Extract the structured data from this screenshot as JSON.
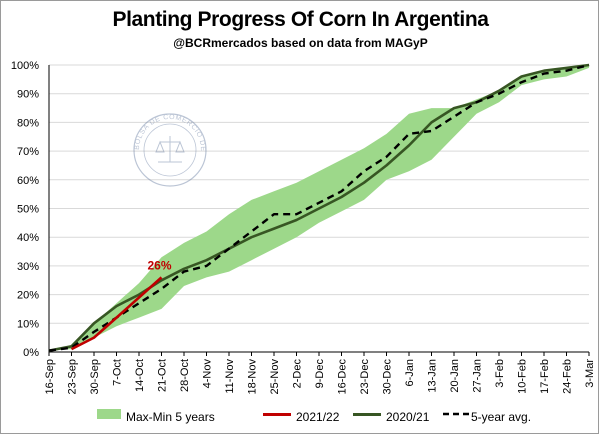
{
  "chart_data": {
    "type": "line",
    "title": "Planting Progress Of Corn In Argentina",
    "subtitle": "@BCRmercados based on data from MAGyP",
    "x": [
      "16-Sep",
      "23-Sep",
      "30-Sep",
      "7-Oct",
      "14-Oct",
      "21-Oct",
      "28-Oct",
      "4-Nov",
      "11-Nov",
      "18-Nov",
      "25-Nov",
      "2-Dec",
      "9-Dec",
      "16-Dec",
      "23-Dec",
      "30-Dec",
      "6-Jan",
      "13-Jan",
      "20-Jan",
      "27-Jan",
      "3-Feb",
      "10-Feb",
      "17-Feb",
      "24-Feb",
      "3-Mar"
    ],
    "y_ticks": [
      "0%",
      "10%",
      "20%",
      "30%",
      "40%",
      "50%",
      "60%",
      "70%",
      "80%",
      "90%",
      "100%"
    ],
    "ylim": [
      0,
      100
    ],
    "grid": "horizontal",
    "legend_position": "bottom",
    "colors": {
      "band": "#9dd88a",
      "current": "#c00000",
      "prev": "#375623",
      "avg": "#000000"
    },
    "series": [
      {
        "name": "Max-Min 5 years",
        "kind": "band",
        "max": [
          0.5,
          2,
          10,
          17,
          24,
          33,
          38,
          42,
          48,
          53,
          56,
          59,
          63,
          67,
          71,
          76,
          83,
          85,
          85,
          88,
          91,
          96,
          98,
          99,
          100
        ],
        "min": [
          0.5,
          1,
          5,
          9,
          12,
          15,
          23,
          26,
          28,
          32,
          36,
          40,
          45,
          49,
          53,
          60,
          63,
          67,
          75,
          83,
          87,
          93,
          95,
          96,
          99
        ]
      },
      {
        "name": "2021/22",
        "kind": "line",
        "values": [
          null,
          1,
          5,
          12,
          19,
          26,
          null,
          null,
          null,
          null,
          null,
          null,
          null,
          null,
          null,
          null,
          null,
          null,
          null,
          null,
          null,
          null,
          null,
          null,
          null
        ]
      },
      {
        "name": "2020/21",
        "kind": "line",
        "values": [
          0.5,
          2,
          10,
          16,
          20,
          25,
          29,
          32,
          36,
          40,
          43,
          46,
          50,
          54,
          59,
          65,
          72,
          80,
          85,
          87,
          91,
          96,
          98,
          99,
          100
        ]
      },
      {
        "name": "5-year avg.",
        "kind": "dashed",
        "values": [
          0.5,
          1.5,
          7,
          12,
          17,
          22,
          28,
          30,
          36,
          42,
          48,
          48,
          52,
          56,
          63,
          68,
          76,
          77,
          82,
          87,
          90,
          94,
          97,
          98,
          100
        ]
      }
    ],
    "annotations": [
      {
        "text": "26%",
        "x": "21-Oct",
        "y": 26,
        "color": "#c00000"
      }
    ],
    "watermark": "BOLSA DE COMERCIO DE ROSARIO"
  }
}
